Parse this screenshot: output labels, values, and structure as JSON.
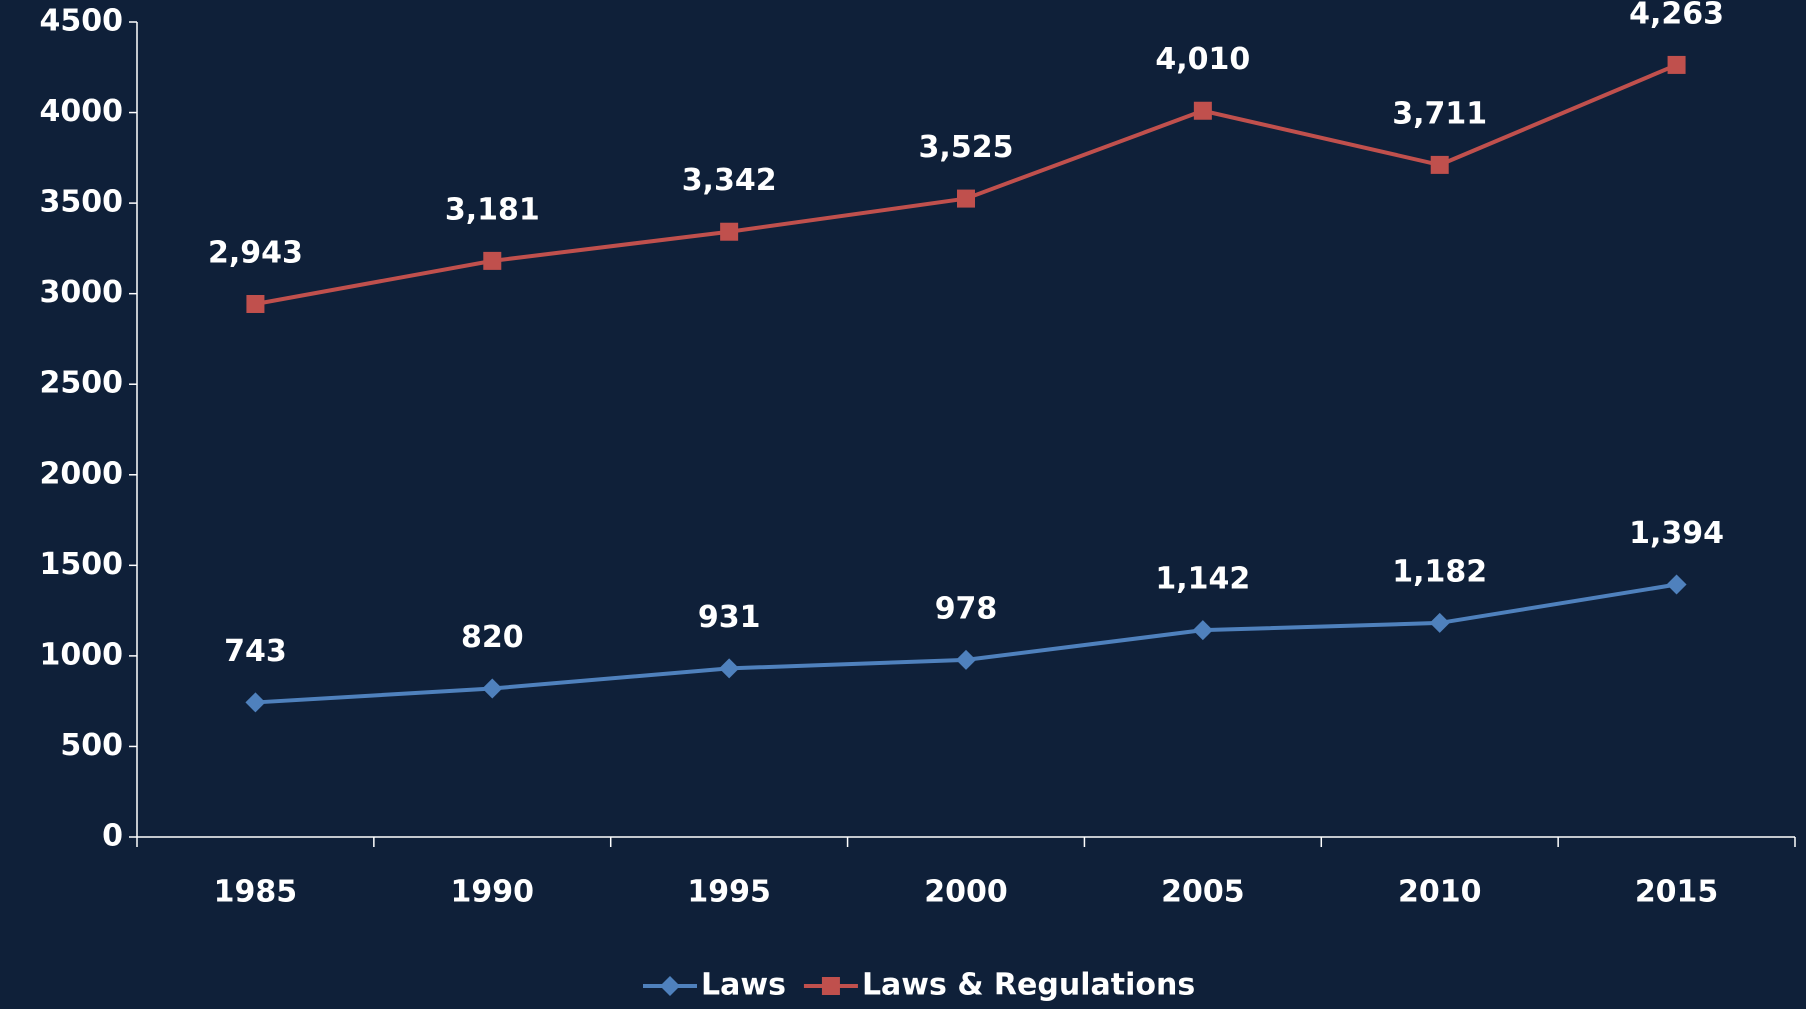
{
  "chart_data": {
    "type": "line",
    "categories": [
      "1985",
      "1990",
      "1995",
      "2000",
      "2005",
      "2010",
      "2015"
    ],
    "series": [
      {
        "name": "Laws",
        "color": "#4f81bd",
        "marker": "diamond",
        "values": [
          743,
          820,
          931,
          978,
          1142,
          1182,
          1394
        ],
        "value_labels": [
          "743",
          "820",
          "931",
          "978",
          "1,142",
          "1,182",
          "1,394"
        ]
      },
      {
        "name": "Laws & Regulations",
        "color": "#c0504d",
        "marker": "square",
        "values": [
          2943,
          3181,
          3342,
          3525,
          4010,
          3711,
          4263
        ],
        "value_labels": [
          "2,943",
          "3,181",
          "3,342",
          "3,525",
          "4,010",
          "3,711",
          "4,263"
        ]
      }
    ],
    "ylim": [
      0,
      4500
    ],
    "yticks": [
      0,
      500,
      1000,
      1500,
      2000,
      2500,
      3000,
      3500,
      4000,
      4500
    ],
    "grid": false,
    "legend": "bottom"
  }
}
